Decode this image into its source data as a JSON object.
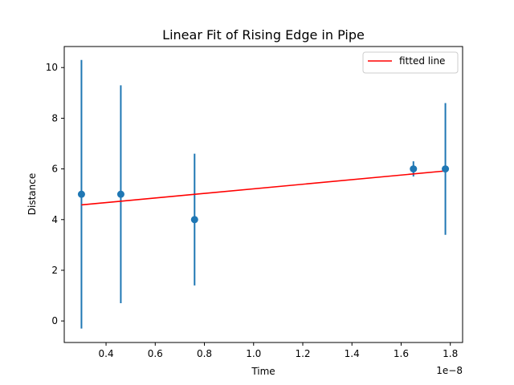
{
  "chart_data": {
    "type": "scatter",
    "title": "Linear Fit of Rising Edge in Pipe",
    "xlabel": "Time",
    "ylabel": "Distance",
    "x_offset_label": "1e−8",
    "x_scale": 1e-08,
    "xlim": [
      0.23,
      1.85
    ],
    "ylim": [
      -0.85,
      10.83
    ],
    "xticks": [
      0.4,
      0.6,
      0.8,
      1.0,
      1.2,
      1.4,
      1.6,
      1.8
    ],
    "xtick_labels": [
      "0.4",
      "0.6",
      "0.8",
      "1.0",
      "1.2",
      "1.4",
      "1.6",
      "1.8"
    ],
    "yticks": [
      0,
      2,
      4,
      6,
      8,
      10
    ],
    "ytick_labels": [
      "0",
      "2",
      "4",
      "6",
      "8",
      "10"
    ],
    "grid": false,
    "legend_position": "top-right",
    "series": [
      {
        "kind": "errorbar",
        "color": "#1f77b4",
        "x": [
          0.3,
          0.46,
          0.76,
          1.65,
          1.78
        ],
        "y": [
          5,
          5,
          4,
          6,
          6
        ],
        "yerr": [
          5.3,
          4.3,
          2.6,
          0.3,
          2.6
        ]
      },
      {
        "kind": "line",
        "name": "fitted line",
        "color": "#ff0000",
        "x": [
          0.3,
          1.78
        ],
        "y": [
          4.58,
          5.92
        ]
      }
    ]
  }
}
